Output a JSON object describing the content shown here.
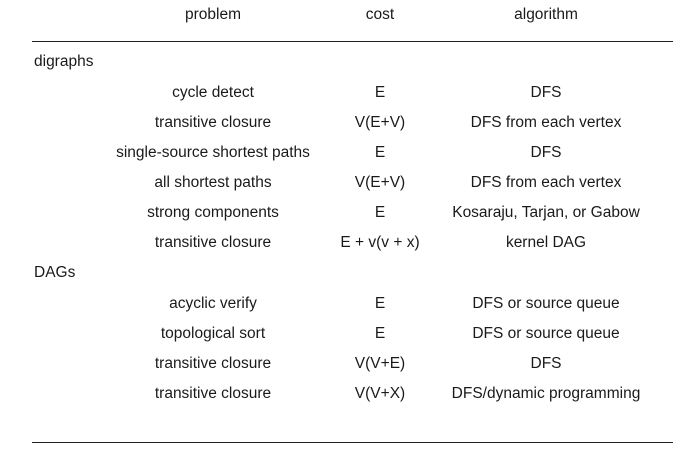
{
  "table": {
    "headers": [
      "problem",
      "cost",
      "algorithm"
    ],
    "groups": [
      {
        "label": "digraphs",
        "rows": [
          {
            "problem": "cycle detect",
            "cost": "E",
            "algorithm": "DFS"
          },
          {
            "problem": "transitive closure",
            "cost": "V(E+V)",
            "algorithm": "DFS from each vertex"
          },
          {
            "problem": "single-source shortest paths",
            "cost": "E",
            "algorithm": "DFS"
          },
          {
            "problem": "all shortest paths",
            "cost": "V(E+V)",
            "algorithm": "DFS from each vertex"
          },
          {
            "problem": "strong components",
            "cost": "E",
            "algorithm": "Kosaraju, Tarjan, or Gabow"
          },
          {
            "problem": "transitive closure",
            "cost": "E + v(v + x)",
            "algorithm": "kernel DAG"
          }
        ]
      },
      {
        "label": "DAGs",
        "rows": [
          {
            "problem": "acyclic verify",
            "cost": "E",
            "algorithm": "DFS or source queue"
          },
          {
            "problem": "topological sort",
            "cost": "E",
            "algorithm": "DFS or source queue"
          },
          {
            "problem": "transitive closure",
            "cost": "V(V+E)",
            "algorithm": "DFS"
          },
          {
            "problem": "transitive closure",
            "cost": "V(V+X)",
            "algorithm": "DFS/dynamic programming"
          }
        ]
      }
    ]
  }
}
